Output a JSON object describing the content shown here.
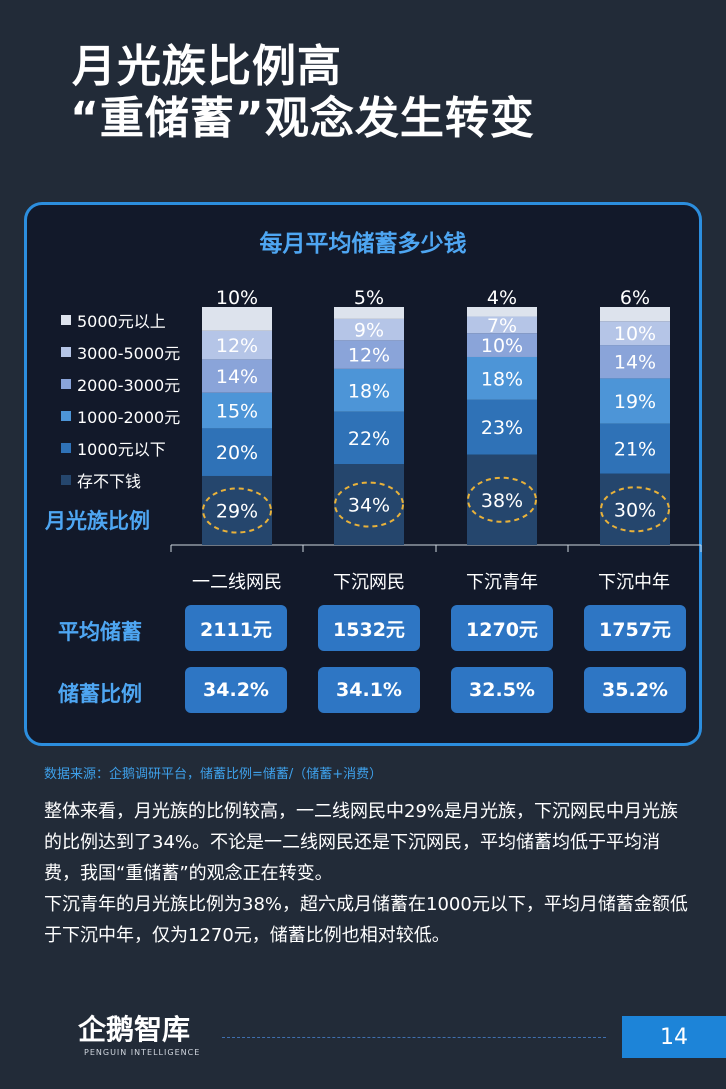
{
  "title": {
    "line1": "月光族比例高",
    "line2": "“重储蓄”观念发生转变"
  },
  "chart_data": {
    "type": "bar",
    "stacked": true,
    "title": "每月平均储蓄多少钱",
    "categories": [
      "一二线网民",
      "下沉网民",
      "下沉青年",
      "下沉中年"
    ],
    "series": [
      {
        "name": "存不下钱",
        "color": "#25466d",
        "values": [
          29,
          34,
          38,
          30
        ]
      },
      {
        "name": "1000元以下",
        "color": "#2f72b7",
        "values": [
          20,
          22,
          23,
          21
        ]
      },
      {
        "name": "1000-2000元",
        "color": "#4d95d7",
        "values": [
          15,
          18,
          18,
          19
        ]
      },
      {
        "name": "2000-3000元",
        "color": "#8aa4d9",
        "values": [
          14,
          12,
          10,
          14
        ]
      },
      {
        "name": "3000-5000元",
        "color": "#b5c5e7",
        "values": [
          12,
          9,
          7,
          10
        ]
      },
      {
        "name": "5000元以上",
        "color": "#dde3ed",
        "values": [
          10,
          5,
          4,
          6
        ]
      }
    ],
    "value_suffix": "%",
    "highlight_series": "存不下钱"
  },
  "legend": [
    "5000元以上",
    "3000-5000元",
    "2000-3000元",
    "1000-2000元",
    "1000元以下",
    "存不下钱"
  ],
  "legend_colors": [
    "#dde3ed",
    "#b5c5e7",
    "#8aa4d9",
    "#4d95d7",
    "#2f72b7",
    "#25466d"
  ],
  "row_labels": {
    "moonlight": "月光族比例",
    "avg_savings": "平均储蓄",
    "savings_ratio": "储蓄比例"
  },
  "avg_savings": [
    "2111元",
    "1532元",
    "1270元",
    "1757元"
  ],
  "savings_ratio": [
    "34.2%",
    "34.1%",
    "32.5%",
    "35.2%"
  ],
  "source": "数据来源：企鹅调研平台，储蓄比例=储蓄/（储蓄+消费）",
  "body": {
    "para1": "整体来看，月光族的比例较高，一二线网民中29%是月光族，下沉网民中月光族的比例达到了34%。不论是一二线网民还是下沉网民，平均储蓄均低于平均消费，我国“重储蓄”的观念正在转变。",
    "para2": "下沉青年的月光族比例为38%，超六成月储蓄在1000元以下，平均月储蓄金额低于下沉中年，仅为1270元，储蓄比例也相对较低。"
  },
  "logo": {
    "name": "企鹅智库",
    "sub": "PENGUIN INTELLIGENCE"
  },
  "page_number": "14"
}
